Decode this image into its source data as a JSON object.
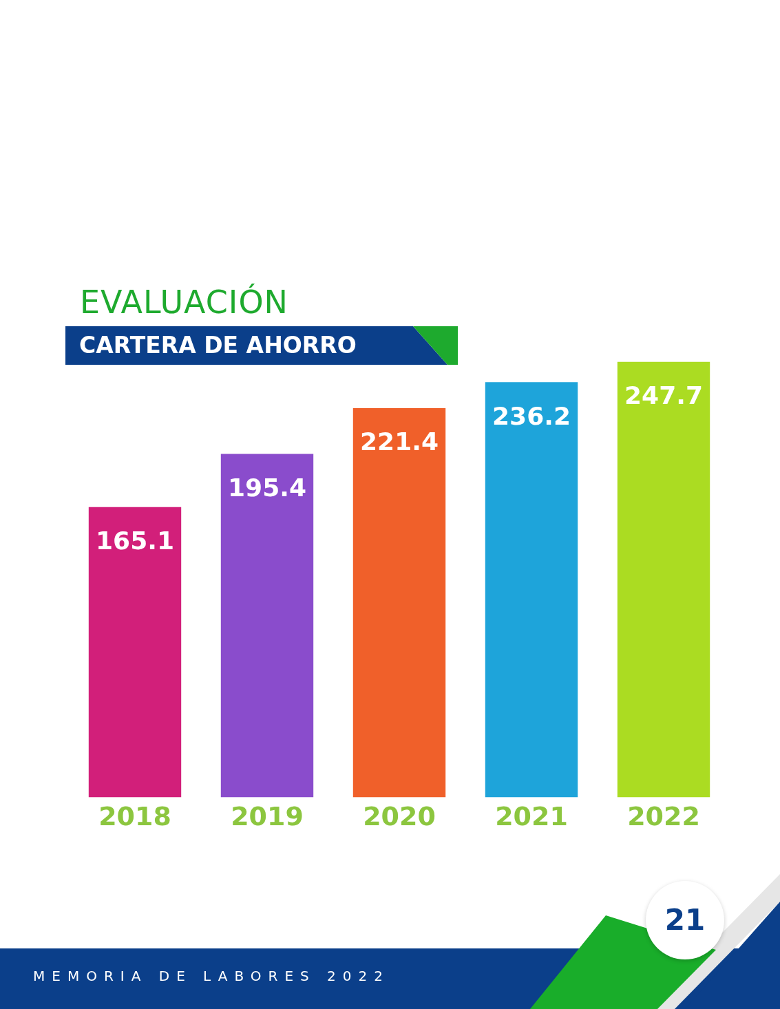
{
  "chart_data": {
    "type": "bar",
    "title": "EVALUACIÓN",
    "subtitle": "CARTERA DE AHORRO",
    "categories": [
      "2018",
      "2019",
      "2020",
      "2021",
      "2022"
    ],
    "values": [
      165.1,
      195.4,
      221.4,
      236.2,
      247.7
    ],
    "colors": [
      "#d21f7a",
      "#8a4ccc",
      "#f0602a",
      "#1ea4da",
      "#abdc22"
    ],
    "data_labels": true,
    "annotations": [
      "MEMORIA DE LABORES 2022",
      "21"
    ]
  }
}
